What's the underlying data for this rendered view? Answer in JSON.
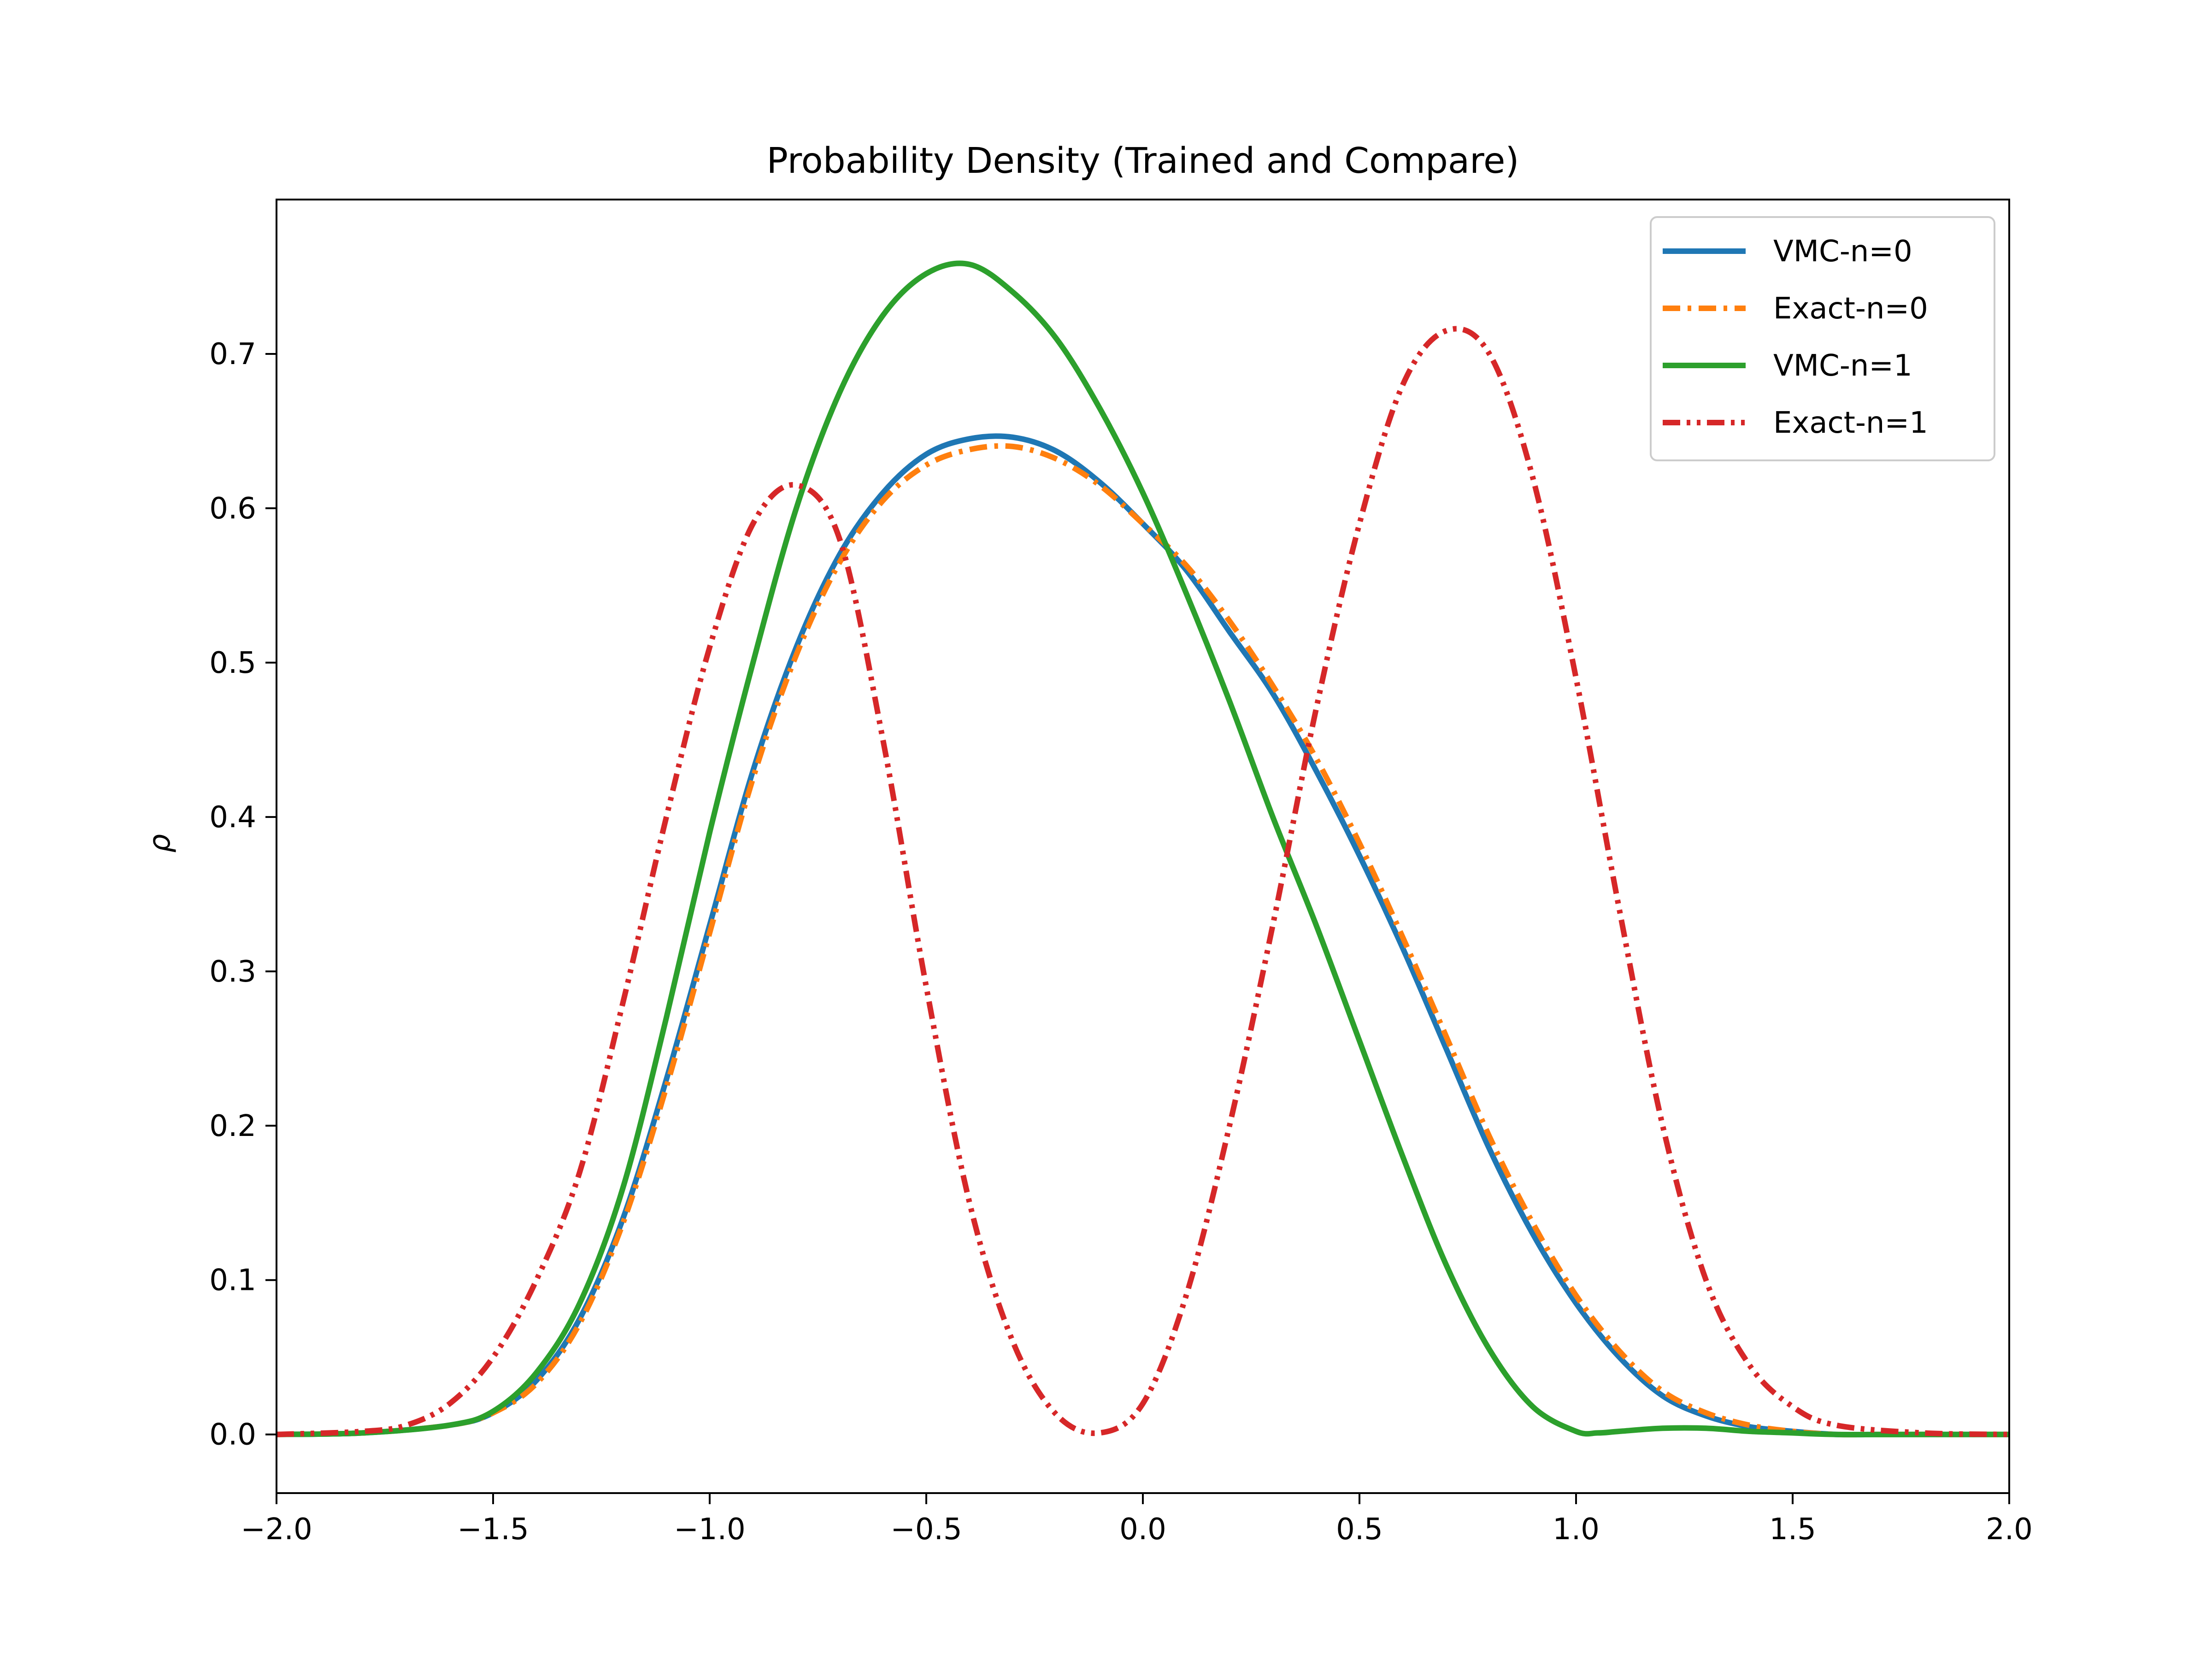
{
  "chart_data": {
    "type": "line",
    "title": "Probability Density (Trained and Compare)",
    "xlabel": "",
    "ylabel": "ρ",
    "xlim": [
      -2.0,
      2.0
    ],
    "ylim": [
      -0.038,
      0.8
    ],
    "grid": false,
    "legend_position": "top-right",
    "x_ticks": [
      {
        "value": -2.0,
        "label": "−2.0"
      },
      {
        "value": -1.5,
        "label": "−1.5"
      },
      {
        "value": -1.0,
        "label": "−1.0"
      },
      {
        "value": -0.5,
        "label": "−0.5"
      },
      {
        "value": 0.0,
        "label": "0.0"
      },
      {
        "value": 0.5,
        "label": "0.5"
      },
      {
        "value": 1.0,
        "label": "1.0"
      },
      {
        "value": 1.5,
        "label": "1.5"
      },
      {
        "value": 2.0,
        "label": "2.0"
      }
    ],
    "y_ticks": [
      {
        "value": 0.0,
        "label": "0.0"
      },
      {
        "value": 0.1,
        "label": "0.1"
      },
      {
        "value": 0.2,
        "label": "0.2"
      },
      {
        "value": 0.3,
        "label": "0.3"
      },
      {
        "value": 0.4,
        "label": "0.4"
      },
      {
        "value": 0.5,
        "label": "0.5"
      },
      {
        "value": 0.6,
        "label": "0.6"
      },
      {
        "value": 0.7,
        "label": "0.7"
      }
    ],
    "series": [
      {
        "name": "VMC-n=0",
        "color": "#1f77b4",
        "line_style": "solid",
        "x": [
          -2.0,
          -1.8,
          -1.6,
          -1.5,
          -1.4,
          -1.3,
          -1.2,
          -1.1,
          -1.0,
          -0.9,
          -0.8,
          -0.7,
          -0.6,
          -0.5,
          -0.4,
          -0.3,
          -0.2,
          -0.1,
          0.0,
          0.1,
          0.2,
          0.3,
          0.4,
          0.5,
          0.6,
          0.7,
          0.8,
          0.9,
          1.0,
          1.1,
          1.2,
          1.3,
          1.4,
          1.5,
          1.6,
          1.7,
          1.8,
          2.0
        ],
        "y": [
          0.0,
          0.001,
          0.006,
          0.014,
          0.035,
          0.075,
          0.14,
          0.23,
          0.33,
          0.43,
          0.51,
          0.57,
          0.61,
          0.635,
          0.645,
          0.646,
          0.637,
          0.617,
          0.59,
          0.56,
          0.52,
          0.48,
          0.43,
          0.375,
          0.315,
          0.25,
          0.185,
          0.13,
          0.085,
          0.05,
          0.025,
          0.012,
          0.005,
          0.002,
          0.0,
          0.0,
          0.0,
          0.0
        ]
      },
      {
        "name": "Exact-n=0",
        "color": "#ff7f0e",
        "line_style": "dashdot",
        "x": [
          -2.0,
          -1.8,
          -1.6,
          -1.5,
          -1.4,
          -1.3,
          -1.2,
          -1.1,
          -1.0,
          -0.9,
          -0.8,
          -0.7,
          -0.6,
          -0.5,
          -0.4,
          -0.3,
          -0.2,
          -0.1,
          0.0,
          0.1,
          0.2,
          0.3,
          0.4,
          0.5,
          0.6,
          0.7,
          0.8,
          0.9,
          1.0,
          1.1,
          1.2,
          1.3,
          1.4,
          1.5,
          1.6,
          1.7,
          1.8,
          2.0
        ],
        "y": [
          0.0,
          0.001,
          0.006,
          0.014,
          0.033,
          0.072,
          0.137,
          0.225,
          0.325,
          0.425,
          0.505,
          0.565,
          0.605,
          0.628,
          0.638,
          0.64,
          0.632,
          0.615,
          0.59,
          0.563,
          0.527,
          0.485,
          0.438,
          0.383,
          0.322,
          0.258,
          0.193,
          0.137,
          0.09,
          0.054,
          0.028,
          0.014,
          0.006,
          0.002,
          0.0,
          0.0,
          0.0,
          0.0
        ]
      },
      {
        "name": "VMC-n=1",
        "color": "#2ca02c",
        "line_style": "solid",
        "x": [
          -2.0,
          -1.8,
          -1.6,
          -1.5,
          -1.4,
          -1.3,
          -1.2,
          -1.1,
          -1.0,
          -0.9,
          -0.8,
          -0.7,
          -0.6,
          -0.5,
          -0.4,
          -0.3,
          -0.2,
          -0.1,
          0.0,
          0.1,
          0.2,
          0.3,
          0.4,
          0.5,
          0.6,
          0.7,
          0.8,
          0.9,
          1.0,
          1.05,
          1.1,
          1.2,
          1.3,
          1.4,
          1.5,
          1.6,
          1.8,
          2.0
        ],
        "y": [
          0.0,
          0.001,
          0.006,
          0.015,
          0.04,
          0.085,
          0.16,
          0.27,
          0.39,
          0.5,
          0.6,
          0.675,
          0.725,
          0.752,
          0.758,
          0.74,
          0.71,
          0.665,
          0.61,
          0.545,
          0.475,
          0.4,
          0.33,
          0.255,
          0.18,
          0.11,
          0.055,
          0.018,
          0.002,
          0.001,
          0.002,
          0.004,
          0.004,
          0.002,
          0.001,
          0.0,
          0.0,
          0.0
        ]
      },
      {
        "name": "Exact-n=1",
        "color": "#d62728",
        "line_style": "dashdotdot",
        "x": [
          -2.0,
          -1.8,
          -1.7,
          -1.6,
          -1.5,
          -1.4,
          -1.3,
          -1.2,
          -1.1,
          -1.0,
          -0.9,
          -0.8,
          -0.7,
          -0.6,
          -0.5,
          -0.4,
          -0.3,
          -0.2,
          -0.1,
          0.0,
          0.1,
          0.2,
          0.3,
          0.4,
          0.5,
          0.6,
          0.7,
          0.8,
          0.9,
          1.0,
          1.1,
          1.2,
          1.3,
          1.4,
          1.5,
          1.6,
          1.8,
          2.0
        ],
        "y": [
          0.0,
          0.002,
          0.006,
          0.02,
          0.05,
          0.1,
          0.17,
          0.28,
          0.4,
          0.51,
          0.59,
          0.615,
          0.58,
          0.45,
          0.29,
          0.15,
          0.06,
          0.013,
          0.001,
          0.02,
          0.09,
          0.2,
          0.33,
          0.47,
          0.59,
          0.68,
          0.715,
          0.7,
          0.62,
          0.49,
          0.34,
          0.2,
          0.1,
          0.045,
          0.018,
          0.006,
          0.001,
          0.0
        ]
      }
    ]
  }
}
